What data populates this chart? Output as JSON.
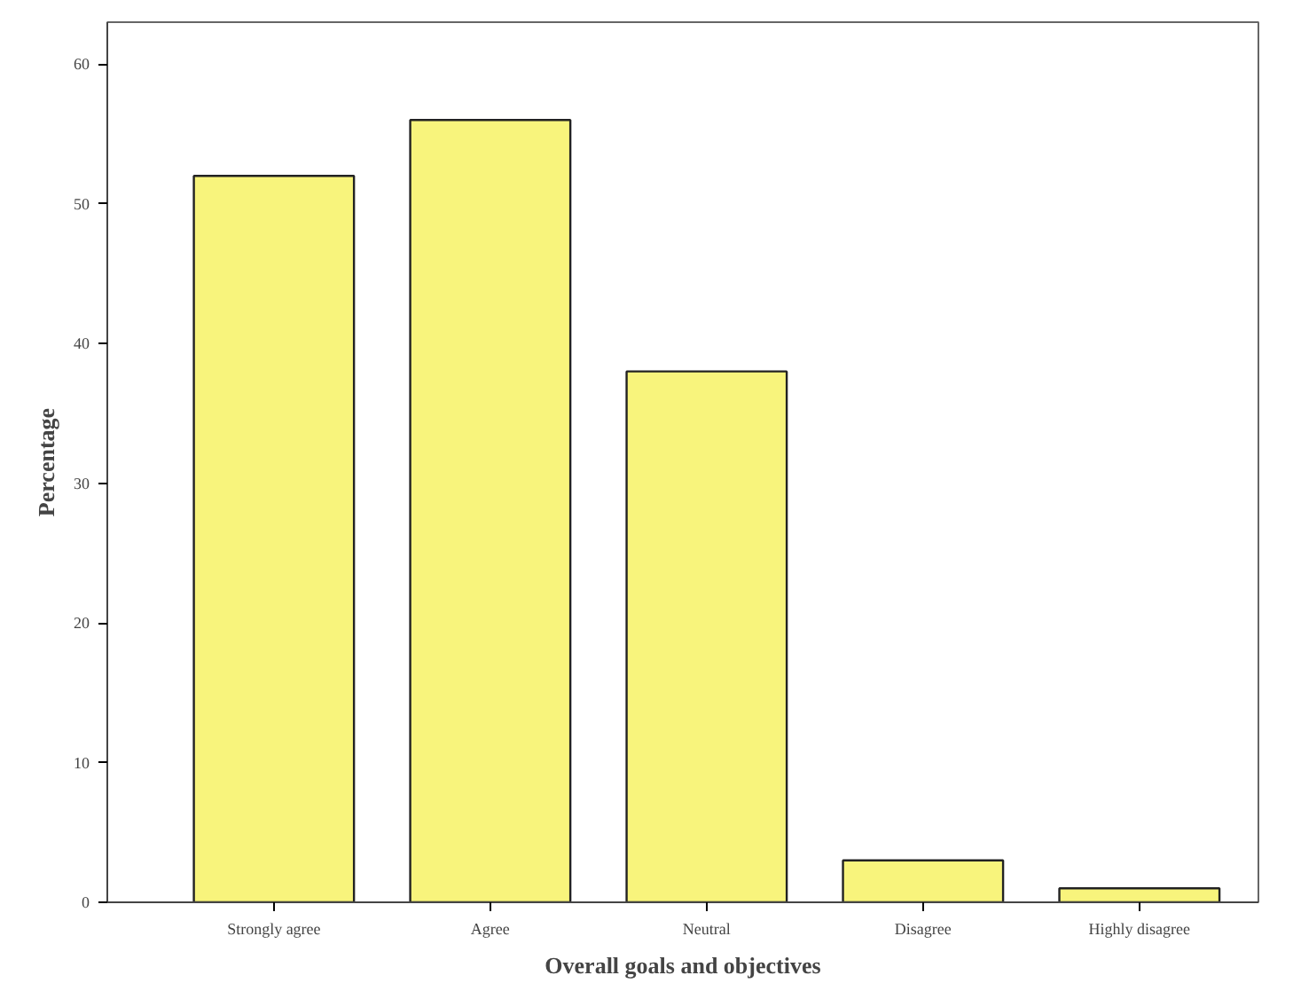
{
  "chart_data": {
    "type": "bar",
    "xlabel": "Overall goals and objectives",
    "ylabel": "Percentage",
    "categories": [
      "Strongly agree",
      "Agree",
      "Neutral",
      "Disagree",
      "Highly disagree"
    ],
    "values": [
      52,
      56,
      38,
      3,
      1
    ],
    "color": "#f8f47c",
    "ylim": [
      0,
      63
    ],
    "yticks": [
      0,
      10,
      20,
      30,
      40,
      50,
      60
    ],
    "grid": false
  }
}
